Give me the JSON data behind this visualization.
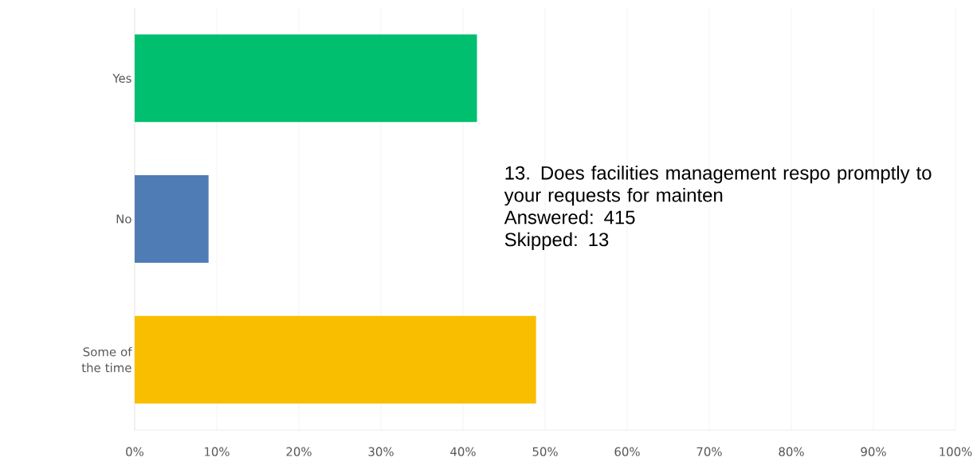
{
  "chart_data": {
    "type": "bar",
    "orientation": "horizontal",
    "title": "13. Does facilities management respo promptly to your requests for mainten",
    "annotations": [
      "Answered: 415",
      "Skipped: 13"
    ],
    "categories": [
      "Yes",
      "No",
      "Some of the time"
    ],
    "values": [
      41.7,
      9.0,
      48.9
    ],
    "colors": [
      "#00bf6f",
      "#507cb6",
      "#f9be00"
    ],
    "xlim": [
      0,
      100
    ],
    "xticks": [
      {
        "value": 0,
        "label": "0%"
      },
      {
        "value": 10,
        "label": "10%"
      },
      {
        "value": 20,
        "label": "20%"
      },
      {
        "value": 30,
        "label": "30%"
      },
      {
        "value": 40,
        "label": "40%"
      },
      {
        "value": 50,
        "label": "50%"
      },
      {
        "value": 60,
        "label": "60%"
      },
      {
        "value": 70,
        "label": "70%"
      },
      {
        "value": 80,
        "label": "80%"
      },
      {
        "value": 90,
        "label": "90%"
      },
      {
        "value": 100,
        "label": "100%"
      }
    ],
    "grid": "x"
  }
}
